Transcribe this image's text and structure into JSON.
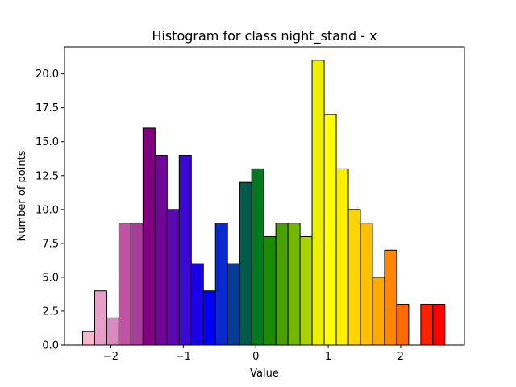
{
  "chart_data": {
    "type": "bar",
    "title": "Histogram for class night_stand - x",
    "xlabel": "Value",
    "ylabel": "Number of points",
    "xlim": [
      -2.64,
      2.88
    ],
    "ylim": [
      0,
      22
    ],
    "xticks": [
      {
        "value": -2,
        "label": "−2"
      },
      {
        "value": -1,
        "label": "−1"
      },
      {
        "value": 0,
        "label": "0"
      },
      {
        "value": 1,
        "label": "1"
      },
      {
        "value": 2,
        "label": "2"
      }
    ],
    "yticks": [
      {
        "value": 0,
        "label": "0.0"
      },
      {
        "value": 2.5,
        "label": "2.5"
      },
      {
        "value": 5,
        "label": "5.0"
      },
      {
        "value": 7.5,
        "label": "7.5"
      },
      {
        "value": 10,
        "label": "10.0"
      },
      {
        "value": 12.5,
        "label": "12.5"
      },
      {
        "value": 15,
        "label": "15.0"
      },
      {
        "value": 17.5,
        "label": "17.5"
      },
      {
        "value": 20,
        "label": "20.0"
      }
    ],
    "grid": false,
    "bin_start": -2.39,
    "bin_width": 0.1667,
    "values": [
      1,
      4,
      2,
      9,
      9,
      16,
      14,
      10,
      14,
      6,
      4,
      9,
      6,
      12,
      13,
      8,
      9,
      9,
      8,
      21,
      17,
      13,
      10,
      9,
      5,
      7,
      3,
      0,
      3,
      3
    ],
    "colors": [
      "#f6b8cc",
      "#e6a0c8",
      "#d98bc0",
      "#bd55a4",
      "#a63d98",
      "#800080",
      "#70059a",
      "#5a0aaf",
      "#3a0ad4",
      "#1a00e8",
      "#0000ff",
      "#0a2ad0",
      "#063c9a",
      "#05584a",
      "#007a20",
      "#1c8c00",
      "#4aa000",
      "#72b800",
      "#a8d200",
      "#eeee00",
      "#ffff00",
      "#fff000",
      "#ffd400",
      "#ffc000",
      "#ffaa00",
      "#ff8800",
      "#ff6a00",
      "#ff4400",
      "#ff2000",
      "#ff0000"
    ]
  }
}
